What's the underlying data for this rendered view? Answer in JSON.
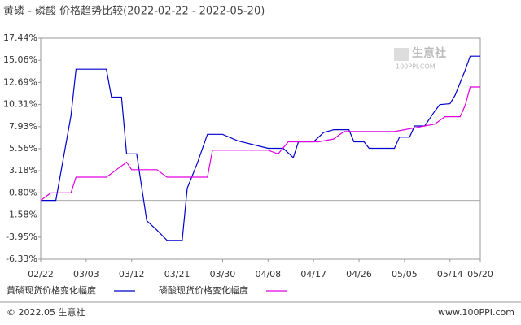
{
  "chart_data": {
    "type": "line",
    "title": "黄磷 - 磷酸 价格趋势比较(2022-02-22 - 2022-05-20)",
    "watermark": "生意社",
    "watermark_sub": "100PPI.COM",
    "footer_left": "© 2022.05 生意社",
    "footer_right": "www.100PPI.com",
    "xlim": [
      "02/22",
      "05/20"
    ],
    "xticks": [
      "02/22",
      "03/03",
      "03/12",
      "03/21",
      "03/30",
      "04/08",
      "04/17",
      "04/26",
      "05/05",
      "05/14",
      "05/20"
    ],
    "ylim": [
      -6.33,
      17.44
    ],
    "yticks": [
      {
        "value": 17.44,
        "label": "17.44%"
      },
      {
        "value": 15.06,
        "label": "15.06%"
      },
      {
        "value": 12.69,
        "label": "12.69%"
      },
      {
        "value": 10.31,
        "label": "10.31%"
      },
      {
        "value": 7.93,
        "label": "7.93%"
      },
      {
        "value": 5.56,
        "label": "5.56%"
      },
      {
        "value": 3.18,
        "label": "3.18%"
      },
      {
        "value": 0.8,
        "label": "0.80%"
      },
      {
        "value": -1.58,
        "label": "-1.58%"
      },
      {
        "value": -3.95,
        "label": "-3.95%"
      },
      {
        "value": -6.33,
        "label": "-6.33%"
      }
    ],
    "hline": 0,
    "series": [
      {
        "name": "黄磷现货价格变化幅度",
        "color": "#0000cc",
        "x": [
          "02/22",
          "02/25",
          "02/28",
          "03/01",
          "03/07",
          "03/08",
          "03/10",
          "03/11",
          "03/13",
          "03/15",
          "03/17",
          "03/19",
          "03/22",
          "03/23",
          "03/25",
          "03/27",
          "03/30",
          "04/02",
          "04/08",
          "04/11",
          "04/13",
          "04/14",
          "04/17",
          "04/19",
          "04/21",
          "04/24",
          "04/25",
          "04/27",
          "04/28",
          "05/03",
          "05/04",
          "05/06",
          "05/07",
          "05/09",
          "05/11",
          "05/12",
          "05/14",
          "05/15",
          "05/17",
          "05/18",
          "05/20"
        ],
        "values": [
          0,
          0,
          9.1,
          14.1,
          14.1,
          11.1,
          11.1,
          5.0,
          5.0,
          -2.2,
          -3.2,
          -4.3,
          -4.3,
          1.3,
          4.0,
          7.1,
          7.1,
          6.4,
          5.6,
          5.6,
          4.6,
          6.3,
          6.3,
          7.3,
          7.6,
          7.6,
          6.3,
          6.3,
          5.6,
          5.6,
          6.8,
          6.8,
          8.0,
          8.0,
          9.6,
          10.3,
          10.4,
          11.3,
          14.0,
          15.5,
          15.5
        ]
      },
      {
        "name": "磷酸现货价格变化幅度",
        "color": "#e000e0",
        "x": [
          "02/22",
          "02/24",
          "02/28",
          "03/01",
          "03/07",
          "03/09",
          "03/11",
          "03/12",
          "03/17",
          "03/19",
          "03/27",
          "03/28",
          "04/08",
          "04/10",
          "04/12",
          "04/18",
          "04/21",
          "04/23",
          "05/03",
          "05/05",
          "05/08",
          "05/11",
          "05/13",
          "05/16",
          "05/17",
          "05/18",
          "05/20"
        ],
        "values": [
          0,
          0.8,
          0.8,
          2.5,
          2.5,
          3.3,
          4.1,
          3.3,
          3.3,
          2.5,
          2.5,
          5.4,
          5.4,
          5.0,
          6.3,
          6.3,
          6.6,
          7.4,
          7.4,
          7.6,
          7.9,
          8.2,
          9.0,
          9.0,
          10.2,
          12.2,
          12.2
        ]
      }
    ]
  }
}
